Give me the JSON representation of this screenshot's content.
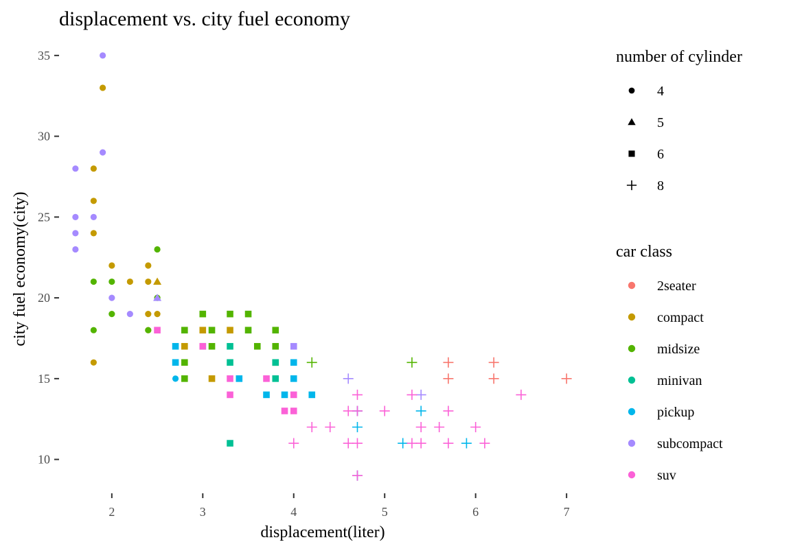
{
  "chart_data": {
    "type": "scatter",
    "title": "displacement vs. city fuel economy",
    "xlabel": "displacement(liter)",
    "ylabel": "city fuel economy(city)",
    "xlim": [
      1.45,
      7.15
    ],
    "ylim": [
      8.2,
      35.8
    ],
    "x_ticks": [
      2,
      3,
      4,
      5,
      6,
      7
    ],
    "y_ticks": [
      10,
      15,
      20,
      25,
      30,
      35
    ],
    "grid": false,
    "legend_position": "right",
    "shape_legend": {
      "title": "number of cylinder",
      "entries": [
        {
          "label": "4",
          "shape": "circle"
        },
        {
          "label": "5",
          "shape": "triangle"
        },
        {
          "label": "6",
          "shape": "square"
        },
        {
          "label": "8",
          "shape": "plus"
        }
      ]
    },
    "color_legend": {
      "title": "car class",
      "entries": [
        {
          "label": "2seater",
          "color": "#F8766D"
        },
        {
          "label": "compact",
          "color": "#C49A00"
        },
        {
          "label": "midsize",
          "color": "#53B400"
        },
        {
          "label": "minivan",
          "color": "#00C094"
        },
        {
          "label": "pickup",
          "color": "#00B6EB"
        },
        {
          "label": "subcompact",
          "color": "#A58AFF"
        },
        {
          "label": "suv",
          "color": "#FB61D7"
        }
      ]
    },
    "points": [
      {
        "x": 1.8,
        "y": 28,
        "cls": "compact",
        "cyl": "4"
      },
      {
        "x": 1.8,
        "y": 26,
        "cls": "compact",
        "cyl": "4"
      },
      {
        "x": 1.8,
        "y": 24,
        "cls": "compact",
        "cyl": "4"
      },
      {
        "x": 1.8,
        "y": 16,
        "cls": "compact",
        "cyl": "4"
      },
      {
        "x": 1.9,
        "y": 33,
        "cls": "compact",
        "cyl": "4"
      },
      {
        "x": 2.0,
        "y": 22,
        "cls": "compact",
        "cyl": "4"
      },
      {
        "x": 2.2,
        "y": 21,
        "cls": "compact",
        "cyl": "4"
      },
      {
        "x": 2.4,
        "y": 22,
        "cls": "compact",
        "cyl": "4"
      },
      {
        "x": 2.4,
        "y": 21,
        "cls": "compact",
        "cyl": "4"
      },
      {
        "x": 2.4,
        "y": 19,
        "cls": "compact",
        "cyl": "4"
      },
      {
        "x": 2.4,
        "y": 18,
        "cls": "compact",
        "cyl": "4"
      },
      {
        "x": 2.5,
        "y": 19,
        "cls": "compact",
        "cyl": "4"
      },
      {
        "x": 2.5,
        "y": 18,
        "cls": "compact",
        "cyl": "4"
      },
      {
        "x": 2.5,
        "y": 21,
        "cls": "compact",
        "cyl": "5"
      },
      {
        "x": 2.8,
        "y": 17,
        "cls": "compact",
        "cyl": "6"
      },
      {
        "x": 3.0,
        "y": 18,
        "cls": "compact",
        "cyl": "6"
      },
      {
        "x": 3.1,
        "y": 15,
        "cls": "compact",
        "cyl": "6"
      },
      {
        "x": 3.3,
        "y": 18,
        "cls": "compact",
        "cyl": "6"
      },
      {
        "x": 1.8,
        "y": 21,
        "cls": "midsize",
        "cyl": "4"
      },
      {
        "x": 1.8,
        "y": 18,
        "cls": "midsize",
        "cyl": "4"
      },
      {
        "x": 2.0,
        "y": 21,
        "cls": "midsize",
        "cyl": "4"
      },
      {
        "x": 2.0,
        "y": 19,
        "cls": "midsize",
        "cyl": "4"
      },
      {
        "x": 2.4,
        "y": 18,
        "cls": "midsize",
        "cyl": "4"
      },
      {
        "x": 2.5,
        "y": 23,
        "cls": "midsize",
        "cyl": "4"
      },
      {
        "x": 2.5,
        "y": 20,
        "cls": "midsize",
        "cyl": "4"
      },
      {
        "x": 2.8,
        "y": 18,
        "cls": "midsize",
        "cyl": "6"
      },
      {
        "x": 2.8,
        "y": 16,
        "cls": "midsize",
        "cyl": "6"
      },
      {
        "x": 2.8,
        "y": 15,
        "cls": "midsize",
        "cyl": "6"
      },
      {
        "x": 3.0,
        "y": 19,
        "cls": "midsize",
        "cyl": "6"
      },
      {
        "x": 3.1,
        "y": 18,
        "cls": "midsize",
        "cyl": "6"
      },
      {
        "x": 3.1,
        "y": 17,
        "cls": "midsize",
        "cyl": "6"
      },
      {
        "x": 3.3,
        "y": 19,
        "cls": "midsize",
        "cyl": "6"
      },
      {
        "x": 3.5,
        "y": 19,
        "cls": "midsize",
        "cyl": "6"
      },
      {
        "x": 3.5,
        "y": 18,
        "cls": "midsize",
        "cyl": "6"
      },
      {
        "x": 3.6,
        "y": 17,
        "cls": "midsize",
        "cyl": "6"
      },
      {
        "x": 3.8,
        "y": 18,
        "cls": "midsize",
        "cyl": "6"
      },
      {
        "x": 3.8,
        "y": 17,
        "cls": "midsize",
        "cyl": "6"
      },
      {
        "x": 3.8,
        "y": 16,
        "cls": "midsize",
        "cyl": "6"
      },
      {
        "x": 4.2,
        "y": 16,
        "cls": "midsize",
        "cyl": "8"
      },
      {
        "x": 5.3,
        "y": 16,
        "cls": "midsize",
        "cyl": "8"
      },
      {
        "x": 3.0,
        "y": 17,
        "cls": "minivan",
        "cyl": "6"
      },
      {
        "x": 3.3,
        "y": 17,
        "cls": "minivan",
        "cyl": "6"
      },
      {
        "x": 3.3,
        "y": 16,
        "cls": "minivan",
        "cyl": "6"
      },
      {
        "x": 3.3,
        "y": 11,
        "cls": "minivan",
        "cyl": "6"
      },
      {
        "x": 3.8,
        "y": 15,
        "cls": "minivan",
        "cyl": "6"
      },
      {
        "x": 3.8,
        "y": 16,
        "cls": "minivan",
        "cyl": "6"
      },
      {
        "x": 2.7,
        "y": 17,
        "cls": "pickup",
        "cyl": "6"
      },
      {
        "x": 2.7,
        "y": 16,
        "cls": "pickup",
        "cyl": "6"
      },
      {
        "x": 2.7,
        "y": 15,
        "cls": "pickup",
        "cyl": "4"
      },
      {
        "x": 3.4,
        "y": 15,
        "cls": "pickup",
        "cyl": "6"
      },
      {
        "x": 3.7,
        "y": 14,
        "cls": "pickup",
        "cyl": "6"
      },
      {
        "x": 3.9,
        "y": 14,
        "cls": "pickup",
        "cyl": "6"
      },
      {
        "x": 4.0,
        "y": 16,
        "cls": "pickup",
        "cyl": "6"
      },
      {
        "x": 4.0,
        "y": 15,
        "cls": "pickup",
        "cyl": "6"
      },
      {
        "x": 4.2,
        "y": 14,
        "cls": "pickup",
        "cyl": "6"
      },
      {
        "x": 4.7,
        "y": 13,
        "cls": "pickup",
        "cyl": "8"
      },
      {
        "x": 4.7,
        "y": 12,
        "cls": "pickup",
        "cyl": "8"
      },
      {
        "x": 4.7,
        "y": 9,
        "cls": "pickup",
        "cyl": "8"
      },
      {
        "x": 5.2,
        "y": 11,
        "cls": "pickup",
        "cyl": "8"
      },
      {
        "x": 5.4,
        "y": 13,
        "cls": "pickup",
        "cyl": "8"
      },
      {
        "x": 5.9,
        "y": 11,
        "cls": "pickup",
        "cyl": "8"
      },
      {
        "x": 1.6,
        "y": 28,
        "cls": "subcompact",
        "cyl": "4"
      },
      {
        "x": 1.6,
        "y": 25,
        "cls": "subcompact",
        "cyl": "4"
      },
      {
        "x": 1.6,
        "y": 24,
        "cls": "subcompact",
        "cyl": "4"
      },
      {
        "x": 1.6,
        "y": 23,
        "cls": "subcompact",
        "cyl": "4"
      },
      {
        "x": 1.8,
        "y": 25,
        "cls": "subcompact",
        "cyl": "4"
      },
      {
        "x": 1.9,
        "y": 35,
        "cls": "subcompact",
        "cyl": "4"
      },
      {
        "x": 1.9,
        "y": 29,
        "cls": "subcompact",
        "cyl": "4"
      },
      {
        "x": 2.0,
        "y": 20,
        "cls": "subcompact",
        "cyl": "4"
      },
      {
        "x": 2.2,
        "y": 19,
        "cls": "subcompact",
        "cyl": "4"
      },
      {
        "x": 2.5,
        "y": 20,
        "cls": "subcompact",
        "cyl": "5"
      },
      {
        "x": 4.0,
        "y": 17,
        "cls": "subcompact",
        "cyl": "6"
      },
      {
        "x": 4.6,
        "y": 15,
        "cls": "subcompact",
        "cyl": "8"
      },
      {
        "x": 5.4,
        "y": 14,
        "cls": "subcompact",
        "cyl": "8"
      },
      {
        "x": 5.7,
        "y": 16,
        "cls": "2seater",
        "cyl": "8"
      },
      {
        "x": 5.7,
        "y": 15,
        "cls": "2seater",
        "cyl": "8"
      },
      {
        "x": 6.2,
        "y": 16,
        "cls": "2seater",
        "cyl": "8"
      },
      {
        "x": 6.2,
        "y": 15,
        "cls": "2seater",
        "cyl": "8"
      },
      {
        "x": 7.0,
        "y": 15,
        "cls": "2seater",
        "cyl": "8"
      },
      {
        "x": 2.5,
        "y": 18,
        "cls": "suv",
        "cyl": "6"
      },
      {
        "x": 3.0,
        "y": 17,
        "cls": "suv",
        "cyl": "6"
      },
      {
        "x": 3.3,
        "y": 15,
        "cls": "suv",
        "cyl": "6"
      },
      {
        "x": 3.3,
        "y": 14,
        "cls": "suv",
        "cyl": "6"
      },
      {
        "x": 3.7,
        "y": 15,
        "cls": "suv",
        "cyl": "6"
      },
      {
        "x": 3.9,
        "y": 13,
        "cls": "suv",
        "cyl": "6"
      },
      {
        "x": 4.0,
        "y": 14,
        "cls": "suv",
        "cyl": "6"
      },
      {
        "x": 4.0,
        "y": 13,
        "cls": "suv",
        "cyl": "6"
      },
      {
        "x": 4.0,
        "y": 11,
        "cls": "suv",
        "cyl": "8"
      },
      {
        "x": 4.2,
        "y": 12,
        "cls": "suv",
        "cyl": "8"
      },
      {
        "x": 4.4,
        "y": 12,
        "cls": "suv",
        "cyl": "8"
      },
      {
        "x": 4.6,
        "y": 13,
        "cls": "suv",
        "cyl": "8"
      },
      {
        "x": 4.6,
        "y": 11,
        "cls": "suv",
        "cyl": "8"
      },
      {
        "x": 4.7,
        "y": 14,
        "cls": "suv",
        "cyl": "8"
      },
      {
        "x": 4.7,
        "y": 13,
        "cls": "suv",
        "cyl": "8"
      },
      {
        "x": 4.7,
        "y": 11,
        "cls": "suv",
        "cyl": "8"
      },
      {
        "x": 4.7,
        "y": 9,
        "cls": "suv",
        "cyl": "8"
      },
      {
        "x": 5.0,
        "y": 13,
        "cls": "suv",
        "cyl": "8"
      },
      {
        "x": 5.3,
        "y": 14,
        "cls": "suv",
        "cyl": "8"
      },
      {
        "x": 5.3,
        "y": 11,
        "cls": "suv",
        "cyl": "8"
      },
      {
        "x": 5.4,
        "y": 12,
        "cls": "suv",
        "cyl": "8"
      },
      {
        "x": 5.4,
        "y": 11,
        "cls": "suv",
        "cyl": "8"
      },
      {
        "x": 5.6,
        "y": 12,
        "cls": "suv",
        "cyl": "8"
      },
      {
        "x": 5.7,
        "y": 13,
        "cls": "suv",
        "cyl": "8"
      },
      {
        "x": 5.7,
        "y": 11,
        "cls": "suv",
        "cyl": "8"
      },
      {
        "x": 6.0,
        "y": 12,
        "cls": "suv",
        "cyl": "8"
      },
      {
        "x": 6.1,
        "y": 11,
        "cls": "suv",
        "cyl": "8"
      },
      {
        "x": 6.5,
        "y": 14,
        "cls": "suv",
        "cyl": "8"
      }
    ]
  }
}
